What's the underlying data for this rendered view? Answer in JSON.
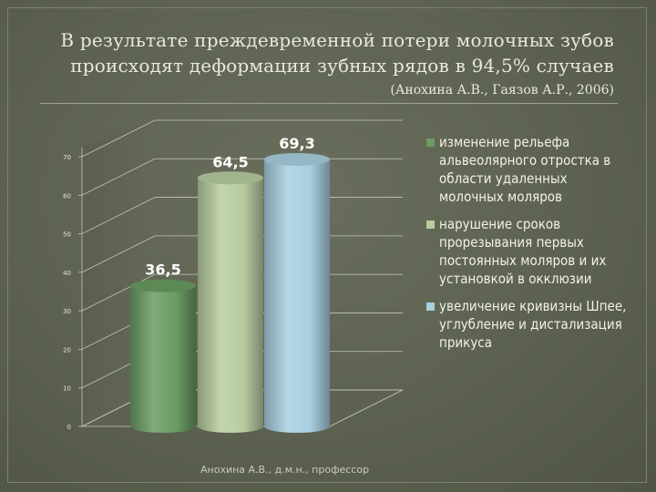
{
  "title": {
    "line1": "В результате преждевременной потери молочных зубов",
    "line2": "происходят деформации зубных рядов в 94,5% случаев",
    "citation": "(Анохина А.В., Гаязов А.Р., 2006)"
  },
  "footer": "Анохина А.В., д.м.н., профессор",
  "chart_data": {
    "type": "bar",
    "style": "3d-cylinder",
    "ylim": [
      0,
      70
    ],
    "yticks": [
      "0",
      "10",
      "20",
      "30",
      "40",
      "50",
      "60",
      "70"
    ],
    "series": [
      {
        "name": "изменение рельефа альвеолярного отростка в области удаленных молочных моляров",
        "value": 36.5,
        "label": "36,5",
        "color": "#6a9c63"
      },
      {
        "name": "нарушение сроков прорезывания первых постоянных моляров и их установкой в окклюзии",
        "value": 64.5,
        "label": "64,5",
        "color": "#b8ccA0"
      },
      {
        "name": "увеличение кривизны Шпее, углубление и дистализация прикуса",
        "value": 69.3,
        "label": "69,3",
        "color": "#a9cfe0"
      }
    ],
    "legend_position": "right",
    "grid": true
  }
}
